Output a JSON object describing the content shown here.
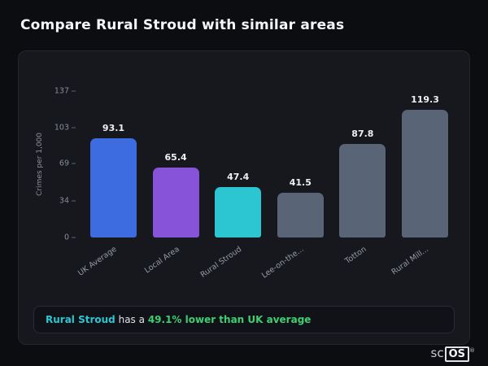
{
  "page": {
    "title": "Compare Rural Stroud with similar areas"
  },
  "chart_data": {
    "type": "bar",
    "title": "",
    "categories": [
      "UK Average",
      "Local Area",
      "Rural Stroud",
      "Lee-on-the...",
      "Totton",
      "Rural Mill..."
    ],
    "values": [
      93.1,
      65.4,
      47.4,
      41.5,
      87.8,
      119.3
    ],
    "bar_colors": [
      "#3d6ce0",
      "#8653d9",
      "#2cc6d3",
      "#596477",
      "#596477",
      "#596477"
    ],
    "value_labels": [
      "93.1",
      "65.4",
      "47.4",
      "41.5",
      "87.8",
      "119.3"
    ],
    "xlabel": "",
    "ylabel": "Crimes per 1,000",
    "yticks": [
      0,
      34,
      69,
      103,
      137
    ],
    "ylim": [
      0,
      137
    ],
    "grid": false,
    "legend": false
  },
  "summary": {
    "area_name": "Rural Stroud",
    "middle_text": "has a",
    "highlight_text": "49.1% lower than UK average",
    "accent_color": "#2cc6d3",
    "highlight_color": "#3ecf72"
  },
  "watermark": {
    "prefix": "sc",
    "boxed": "OS",
    "registered": "®"
  }
}
